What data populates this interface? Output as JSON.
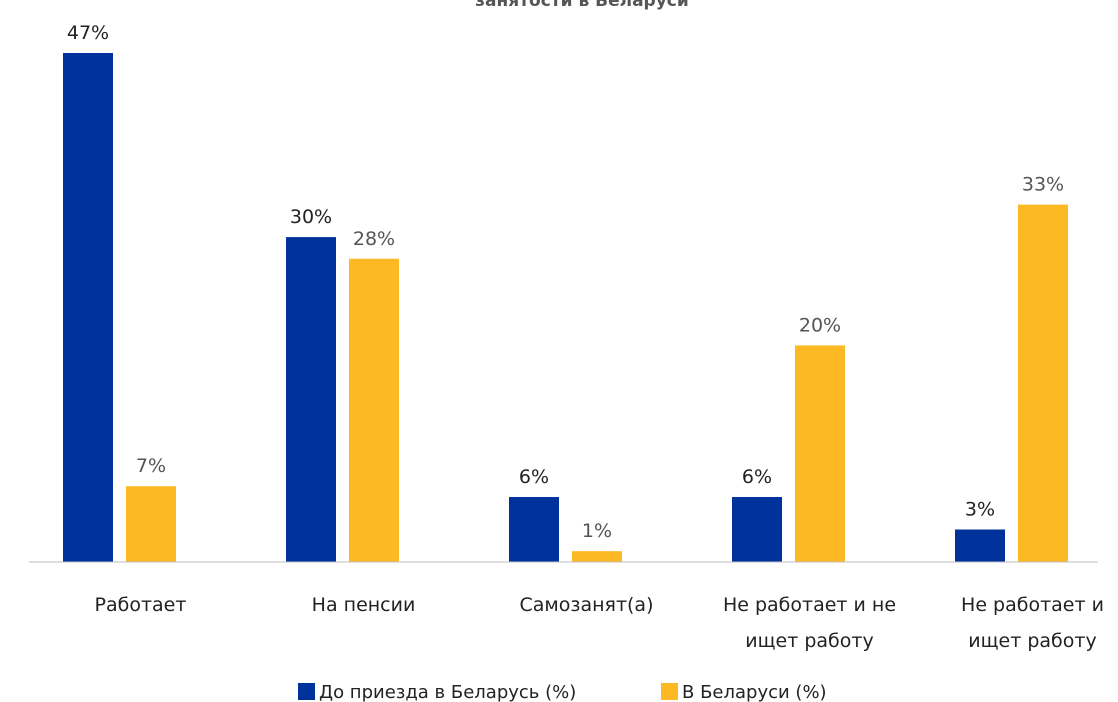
{
  "chart_data": {
    "type": "bar",
    "title": "занятости в Беларуси",
    "categories": [
      [
        "Работает"
      ],
      [
        "На пенсии"
      ],
      [
        "Самозанят(а)"
      ],
      [
        "Не работает и не",
        "ищет работу"
      ],
      [
        "Не работает и",
        "ищет работу"
      ]
    ],
    "series": [
      {
        "name": "До приезда в Беларусь (%)",
        "color": "#00329B",
        "values": [
          47,
          30,
          6,
          6,
          3
        ],
        "labels": [
          "47%",
          "30%",
          "6%",
          "6%",
          "3%"
        ]
      },
      {
        "name": "В Беларуси (%)",
        "color": "#FDB924",
        "values": [
          7,
          28,
          1,
          20,
          33
        ],
        "labels": [
          "7%",
          "28%",
          "1%",
          "20%",
          "33%"
        ]
      }
    ],
    "ylim": [
      0,
      47
    ],
    "grid": false,
    "legend_position": "bottom-center",
    "xlabel": "",
    "ylabel": ""
  }
}
